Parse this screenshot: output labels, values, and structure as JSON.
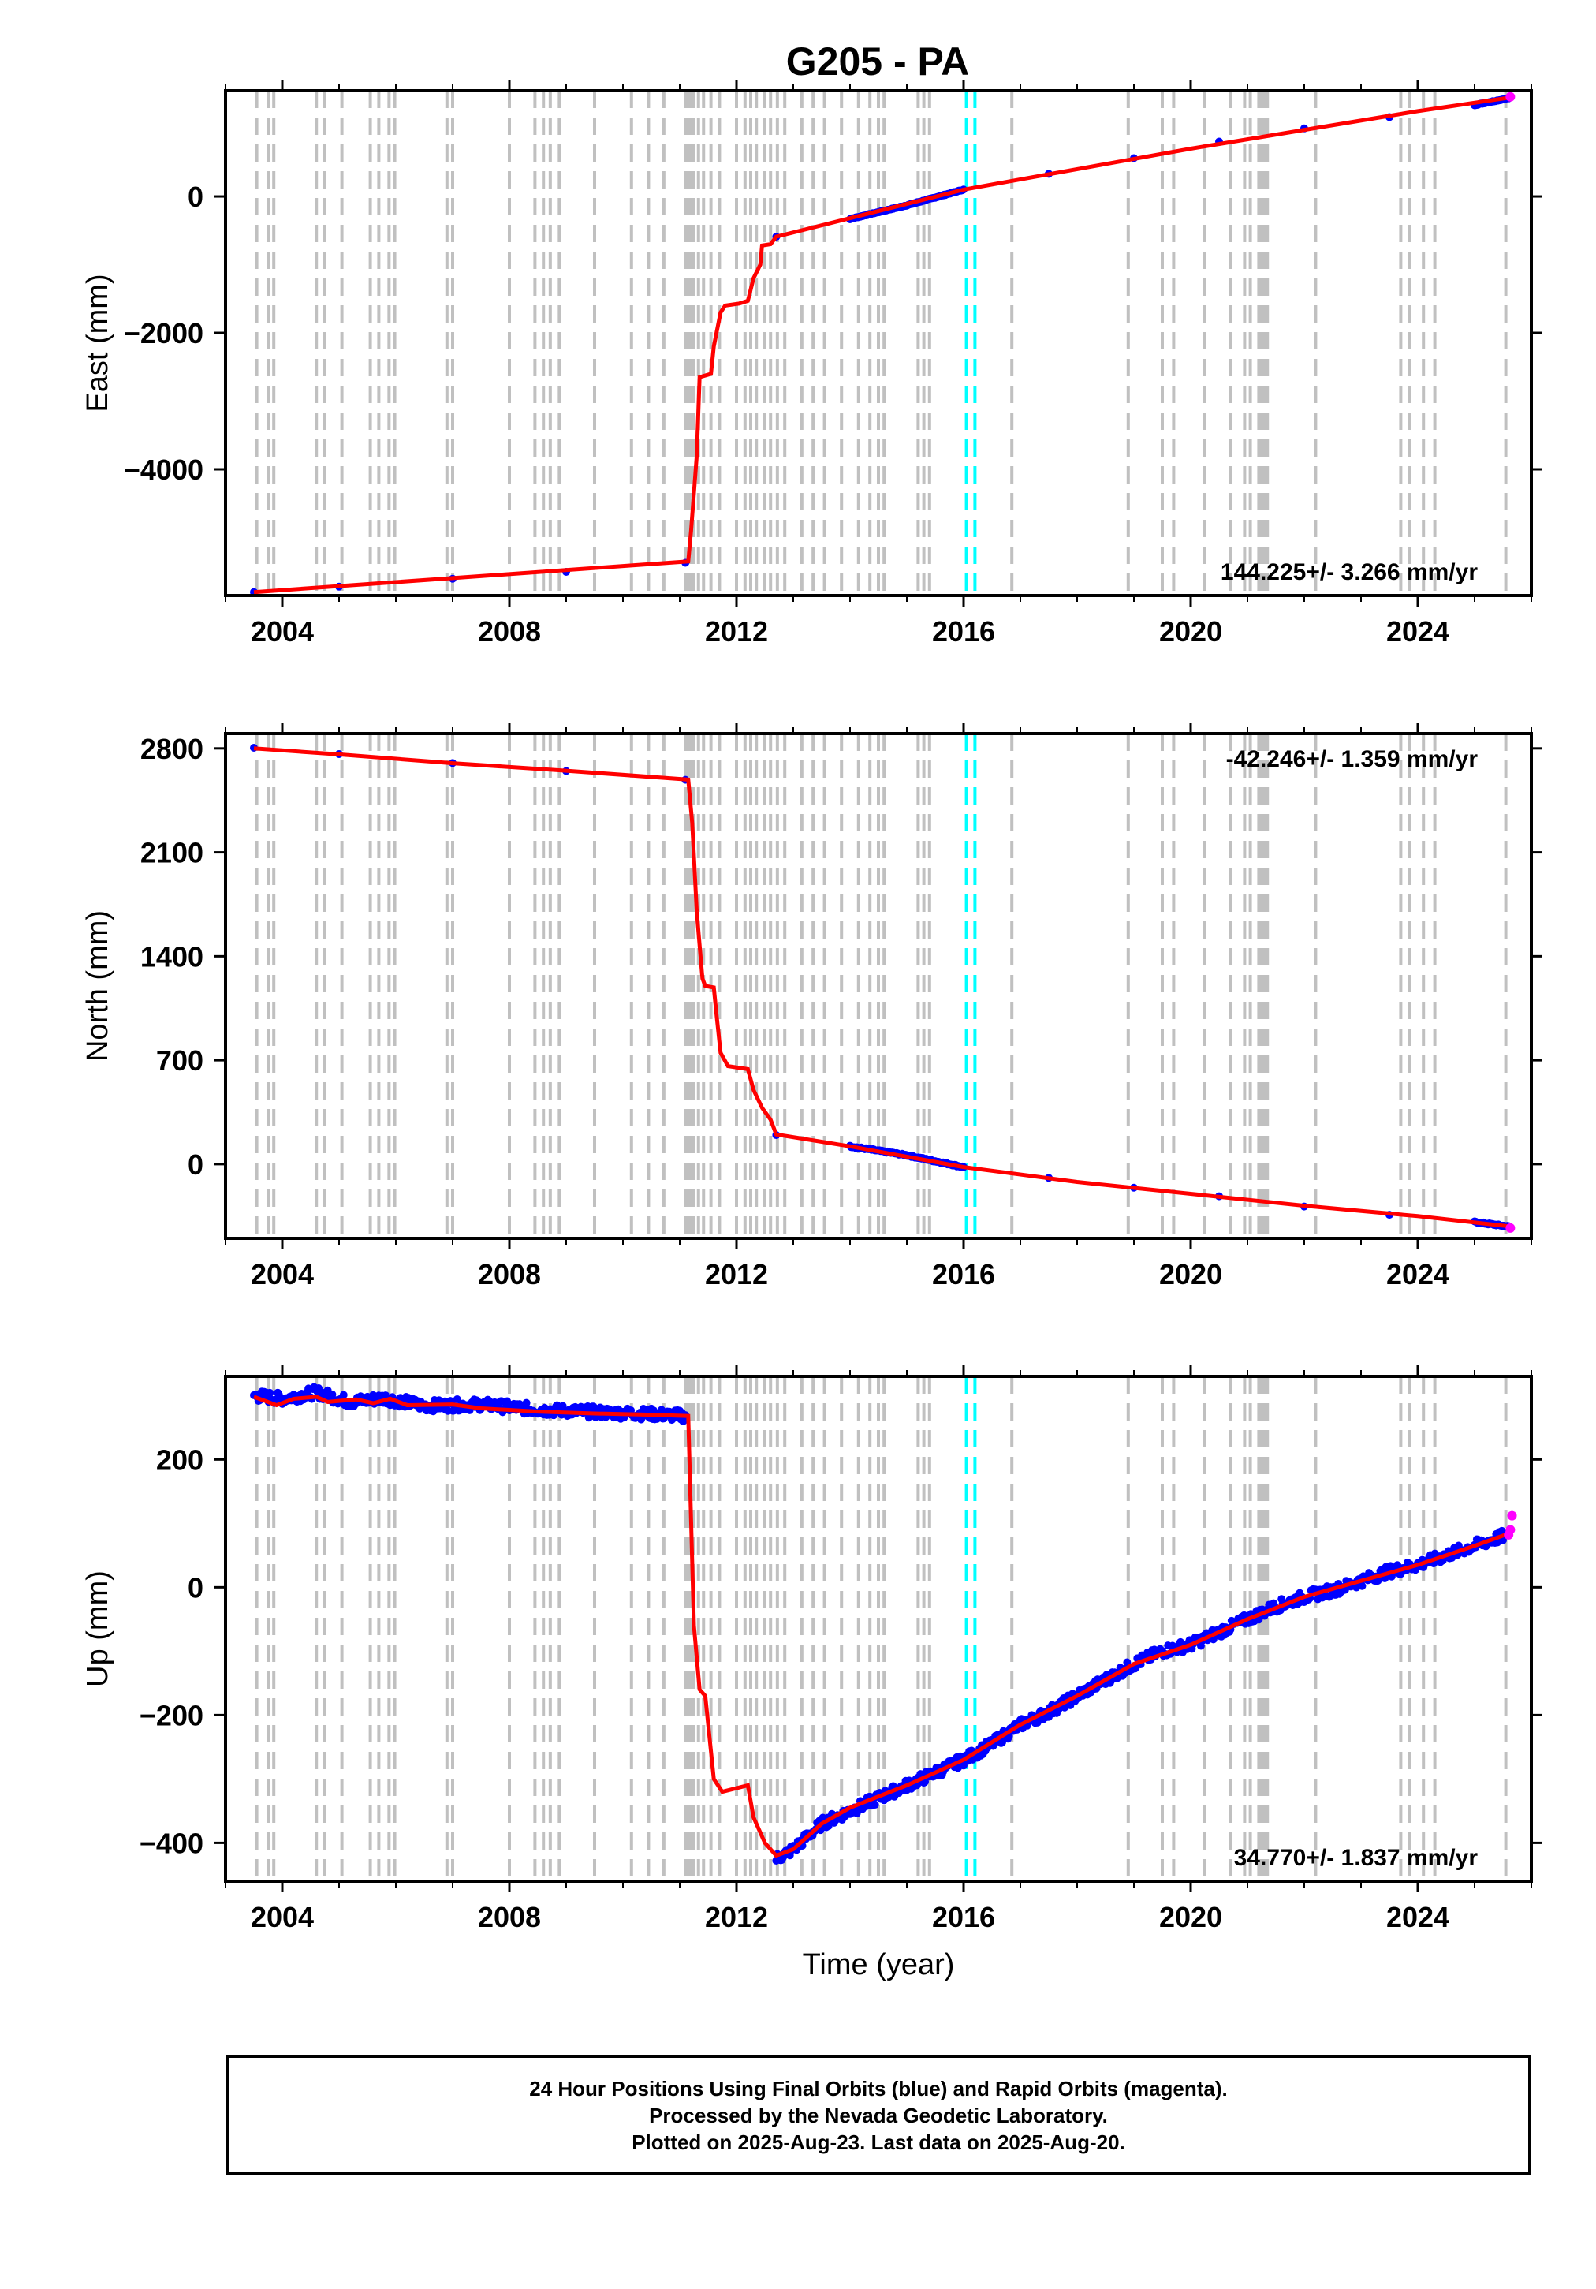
{
  "title": "G205 - PA",
  "footer": {
    "line1": "24 Hour Positions Using Final Orbits (blue) and Rapid Orbits (magenta).",
    "line2": "Processed by the Nevada Geodetic Laboratory.",
    "line3": "Plotted on 2025-Aug-23. Last data on 2025-Aug-20."
  },
  "colors": {
    "final_orbits": "#0000ff",
    "rapid_orbits": "#ff00ff",
    "model": "#ff0000",
    "equipment_change": "#c0c0c0",
    "other_event": "#00ffff"
  },
  "chart_data": [
    {
      "type": "scatter",
      "component": "East",
      "ylabel": "East (mm)",
      "xlabel": "",
      "xlim": [
        2003.0,
        2026.0
      ],
      "ylim": [
        -5850,
        1550
      ],
      "xticks": [
        2004,
        2008,
        2012,
        2016,
        2020,
        2024
      ],
      "yticks": [
        0,
        -2000,
        -4000
      ],
      "rate_label": "144.225+/- 3.266 mm/yr",
      "rate_position": "bottom-right",
      "model_line": {
        "x": [
          2003.5,
          2011.15,
          2011.2,
          2011.3,
          2011.35,
          2011.55,
          2011.6,
          2011.72,
          2011.8,
          2012.05,
          2012.2,
          2012.3,
          2012.42,
          2012.45,
          2012.6,
          2012.7,
          2016.0,
          2020.0,
          2024.0,
          2025.63
        ],
        "y": [
          -5800,
          -5350,
          -4900,
          -3800,
          -2650,
          -2600,
          -2200,
          -1700,
          -1600,
          -1570,
          -1530,
          -1200,
          -1000,
          -720,
          -700,
          -590,
          100,
          700,
          1250,
          1450
        ]
      },
      "final_orbits": {
        "x": [
          2003.5,
          2005.0,
          2007.0,
          2009.0,
          2011.1,
          2012.7,
          2014.0,
          2015.0,
          2016.0,
          2017.5,
          2019.0,
          2020.5,
          2022.0,
          2023.5,
          2025.0,
          2025.6
        ],
        "y": [
          -5800,
          -5720,
          -5600,
          -5500,
          -5370,
          -590,
          -330,
          -130,
          100,
          330,
          560,
          800,
          1000,
          1160,
          1340,
          1440
        ]
      },
      "rapid_orbits": {
        "x": [
          2025.63
        ],
        "y": [
          1460
        ]
      }
    },
    {
      "type": "scatter",
      "component": "North",
      "ylabel": "North (mm)",
      "xlabel": "",
      "xlim": [
        2003.0,
        2026.0
      ],
      "ylim": [
        -500,
        2900
      ],
      "xticks": [
        2004,
        2008,
        2012,
        2016,
        2020,
        2024
      ],
      "yticks": [
        2800,
        2100,
        1400,
        700,
        0
      ],
      "rate_label": "-42.246+/- 1.359 mm/yr",
      "rate_position": "top-right",
      "model_line": {
        "x": [
          2003.5,
          2005.0,
          2007.0,
          2009.0,
          2011.15,
          2011.22,
          2011.3,
          2011.4,
          2011.45,
          2011.6,
          2011.65,
          2011.72,
          2011.85,
          2012.2,
          2012.3,
          2012.45,
          2012.6,
          2012.7,
          2014.0,
          2016.0,
          2018.0,
          2020.0,
          2022.0,
          2024.0,
          2025.63
        ],
        "y": [
          2800,
          2760,
          2700,
          2650,
          2590,
          2300,
          1700,
          1250,
          1200,
          1190,
          1000,
          750,
          660,
          640,
          500,
          380,
          300,
          200,
          120,
          -20,
          -120,
          -200,
          -280,
          -350,
          -420
        ]
      },
      "final_orbits": {
        "x": [
          2003.5,
          2005.0,
          2007.0,
          2009.0,
          2011.1,
          2012.7,
          2014.0,
          2015.0,
          2016.0,
          2017.5,
          2019.0,
          2020.5,
          2022.0,
          2023.5,
          2025.0,
          2025.6
        ],
        "y": [
          2800,
          2760,
          2700,
          2650,
          2590,
          200,
          120,
          60,
          -20,
          -90,
          -160,
          -220,
          -290,
          -340,
          -390,
          -420
        ]
      },
      "rapid_orbits": {
        "x": [
          2025.63
        ],
        "y": [
          -430
        ]
      }
    },
    {
      "type": "scatter",
      "component": "Up",
      "ylabel": "Up (mm)",
      "xlabel": "Time (year)",
      "xlim": [
        2003.0,
        2026.0
      ],
      "ylim": [
        -460,
        330
      ],
      "xticks": [
        2004,
        2008,
        2012,
        2016,
        2020,
        2024
      ],
      "yticks": [
        200,
        0,
        -200,
        -400
      ],
      "rate_label": "34.770+/- 1.837 mm/yr",
      "rate_position": "bottom-right",
      "model_line": {
        "x": [
          2003.5,
          2003.9,
          2004.2,
          2004.6,
          2004.8,
          2005.3,
          2005.6,
          2005.9,
          2006.2,
          2007.0,
          2007.5,
          2008.5,
          2009.5,
          2010.5,
          2011.15,
          2011.25,
          2011.35,
          2011.45,
          2011.6,
          2011.75,
          2012.2,
          2012.3,
          2012.5,
          2012.7,
          2013.0,
          2013.5,
          2014.0,
          2015.0,
          2016.0,
          2017.0,
          2018.0,
          2019.0,
          2020.0,
          2021.0,
          2022.0,
          2023.0,
          2024.0,
          2025.0,
          2025.63
        ],
        "y": [
          298,
          285,
          295,
          298,
          290,
          294,
          288,
          295,
          285,
          286,
          280,
          275,
          272,
          270,
          268,
          -60,
          -160,
          -170,
          -300,
          -320,
          -310,
          -360,
          -400,
          -420,
          -410,
          -370,
          -345,
          -310,
          -270,
          -215,
          -170,
          -120,
          -90,
          -50,
          -15,
          10,
          35,
          65,
          85
        ]
      },
      "final_orbits": {
        "x": [
          2003.5,
          2004.0,
          2004.6,
          2005.2,
          2005.8,
          2006.5,
          2007.5,
          2008.5,
          2009.5,
          2010.5,
          2011.1,
          2012.7,
          2013.0,
          2013.5,
          2014.0,
          2014.5,
          2015.0,
          2015.5,
          2016.0,
          2016.5,
          2017.0,
          2017.5,
          2018.0,
          2018.5,
          2019.0,
          2019.5,
          2020.0,
          2020.5,
          2021.0,
          2021.5,
          2022.0,
          2022.5,
          2023.0,
          2023.5,
          2024.0,
          2024.5,
          2025.0,
          2025.5
        ],
        "y": [
          300,
          295,
          305,
          290,
          296,
          284,
          286,
          278,
          274,
          271,
          268,
          -425,
          -410,
          -370,
          -350,
          -330,
          -310,
          -290,
          -270,
          -245,
          -215,
          -195,
          -170,
          -145,
          -120,
          -100,
          -90,
          -70,
          -50,
          -30,
          -15,
          -5,
          10,
          25,
          35,
          50,
          65,
          80
        ]
      },
      "rapid_orbits": {
        "x": [
          2025.6,
          2025.63,
          2025.66
        ],
        "y": [
          82,
          90,
          112
        ]
      }
    }
  ],
  "event_lines": {
    "gray_dashed": [
      2003.55,
      2003.75,
      2003.85,
      2004.6,
      2004.75,
      2005.05,
      2005.55,
      2005.7,
      2005.88,
      2005.98,
      2006.9,
      2007.0,
      2008.0,
      2008.45,
      2008.6,
      2008.72,
      2008.88,
      2009.5,
      2010.15,
      2010.45,
      2010.72,
      2011.1,
      2011.15,
      2011.2,
      2011.25,
      2011.33,
      2011.42,
      2011.55,
      2011.7,
      2012.0,
      2012.15,
      2012.25,
      2012.35,
      2012.5,
      2012.6,
      2012.72,
      2012.85,
      2013.15,
      2013.35,
      2013.55,
      2013.85,
      2014.15,
      2014.35,
      2014.5,
      2014.6,
      2015.2,
      2015.3,
      2015.4,
      2016.85,
      2018.9,
      2019.5,
      2019.7,
      2020.25,
      2020.7,
      2020.95,
      2021.05,
      2021.2,
      2021.25,
      2021.3,
      2021.35,
      2022.2,
      2023.7,
      2023.85,
      2024.1,
      2024.3,
      2025.55
    ],
    "cyan_dashed": [
      2016.05,
      2016.2
    ]
  }
}
